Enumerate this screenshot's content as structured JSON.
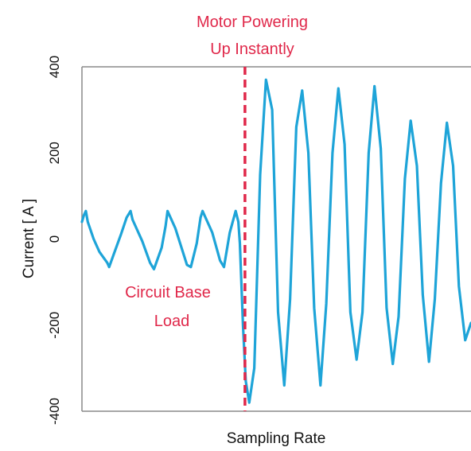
{
  "chart_data": {
    "type": "line",
    "title": "",
    "xlabel": "Sampling Rate",
    "ylabel": "Current [ A ]",
    "ylim": [
      -400,
      400
    ],
    "yticks": [
      400,
      200,
      0,
      -200,
      -400
    ],
    "xlim": [
      0,
      100
    ],
    "grid": false,
    "legend": "none",
    "colors": {
      "line": "#1ea4d8",
      "marker": "#e0284a",
      "annotation": "#e0284a",
      "axis": "#8a8a8a"
    },
    "event_x": 41.9,
    "annotations": [
      {
        "lines": [
          "Motor Powering",
          "Up Instantly"
        ]
      },
      {
        "lines": [
          "Circuit Base",
          "Load"
        ]
      }
    ],
    "series": [
      {
        "x": [
          0,
          0.5,
          1.0,
          1.5,
          3.0,
          4.5,
          6.5,
          7.0,
          8.0,
          10.0,
          11.5,
          12.5,
          13.0,
          15.5,
          17.5,
          18.5,
          20.5,
          21.5,
          22.0,
          24.0,
          27.0,
          28.0,
          29.5,
          30.5,
          31.0,
          33.5,
          35.5,
          36.5,
          38.0,
          39.5,
          40.2,
          40.6,
          41.4,
          42.1,
          43.0,
          44.3,
          45.8,
          47.3,
          48.9,
          50.4,
          52.0,
          53.5,
          55.1,
          56.6,
          58.2,
          59.7,
          61.3,
          62.8,
          64.4,
          65.9,
          67.5,
          69.0,
          70.6,
          72.1,
          73.7,
          75.2,
          76.8,
          78.3,
          79.9,
          81.4,
          83.0,
          84.5,
          86.1,
          87.6,
          89.2,
          90.7,
          92.3,
          93.8,
          95.4,
          96.9,
          98.5,
          100.0
        ],
        "y": [
          40,
          55,
          65,
          40,
          0,
          -30,
          -55,
          -65,
          -40,
          10,
          50,
          65,
          45,
          -5,
          -55,
          -70,
          -20,
          30,
          65,
          25,
          -60,
          -65,
          -10,
          50,
          65,
          15,
          -50,
          -65,
          15,
          65,
          40,
          -10,
          -200,
          -330,
          -380,
          -300,
          150,
          370,
          300,
          -170,
          -340,
          -140,
          260,
          345,
          200,
          -160,
          -340,
          -150,
          200,
          350,
          220,
          -170,
          -280,
          -170,
          200,
          355,
          210,
          -160,
          -290,
          -180,
          140,
          275,
          170,
          -130,
          -285,
          -140,
          130,
          270,
          170,
          -110,
          -235,
          -195
        ]
      }
    ]
  }
}
